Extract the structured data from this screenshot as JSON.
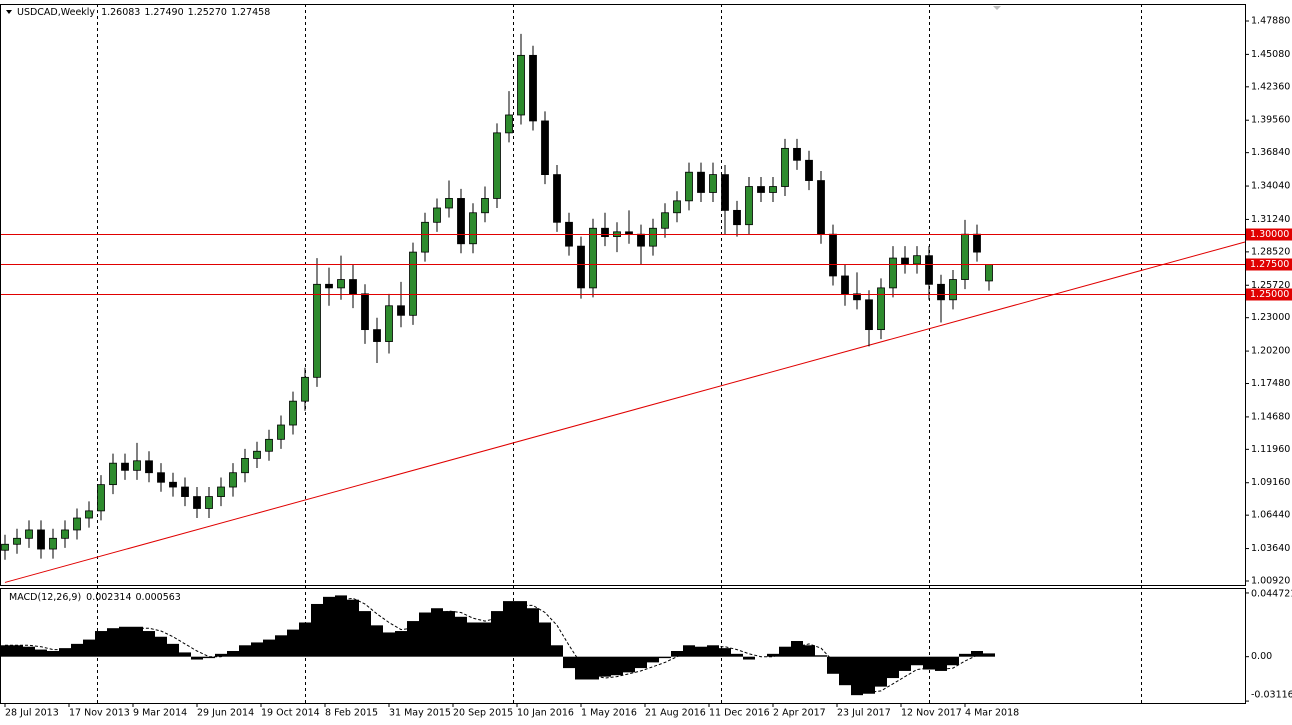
{
  "chart_data": [
    {
      "type": "candlestick",
      "title": "USDCAD,Weekly",
      "ohlc_labels": [
        "1.26083",
        "1.27490",
        "1.25270",
        "1.27458"
      ],
      "x": [
        0,
        3,
        6,
        9,
        12,
        15,
        18,
        21,
        24,
        27,
        30,
        33,
        36,
        39,
        42,
        45,
        48,
        51,
        54,
        57,
        60,
        63,
        66,
        69,
        72,
        75,
        78,
        81,
        84,
        87,
        90,
        93,
        96,
        99,
        102,
        105,
        108,
        111,
        114,
        117,
        120,
        123,
        126,
        129,
        132,
        135,
        138,
        141,
        144,
        147,
        150,
        153,
        156,
        159,
        162,
        165,
        168,
        171,
        174,
        177,
        180,
        183,
        186,
        189,
        192,
        195,
        198,
        201,
        204,
        207,
        210,
        213,
        216,
        219,
        222,
        225,
        228,
        231,
        234,
        237,
        240,
        243,
        246
      ],
      "open": [
        1.035,
        1.04,
        1.045,
        1.052,
        1.036,
        1.045,
        1.052,
        1.062,
        1.068,
        1.09,
        1.108,
        1.102,
        1.11,
        1.1,
        1.092,
        1.088,
        1.08,
        1.07,
        1.08,
        1.088,
        1.1,
        1.112,
        1.118,
        1.128,
        1.14,
        1.16,
        1.18,
        1.258,
        1.255,
        1.262,
        1.25,
        1.22,
        1.21,
        1.24,
        1.232,
        1.285,
        1.31,
        1.322,
        1.33,
        1.292,
        1.318,
        1.33,
        1.385,
        1.4,
        1.45,
        1.395,
        1.35,
        1.31,
        1.29,
        1.255,
        1.305,
        1.298,
        1.302,
        1.3,
        1.29,
        1.305,
        1.318,
        1.328,
        1.352,
        1.335,
        1.35,
        1.32,
        1.308,
        1.34,
        1.335,
        1.34,
        1.372,
        1.362,
        1.345,
        1.3,
        1.265,
        1.25,
        1.245,
        1.22,
        1.255,
        1.28,
        1.275,
        1.282,
        1.258,
        1.245,
        1.262,
        1.3,
        1.26083
      ],
      "high": [
        1.048,
        1.053,
        1.06,
        1.06,
        1.053,
        1.06,
        1.07,
        1.076,
        1.098,
        1.116,
        1.116,
        1.125,
        1.118,
        1.108,
        1.1,
        1.096,
        1.088,
        1.088,
        1.096,
        1.108,
        1.12,
        1.126,
        1.136,
        1.148,
        1.168,
        1.188,
        1.28,
        1.272,
        1.282,
        1.275,
        1.258,
        1.23,
        1.25,
        1.26,
        1.293,
        1.318,
        1.33,
        1.345,
        1.338,
        1.326,
        1.34,
        1.393,
        1.42,
        1.468,
        1.458,
        1.403,
        1.358,
        1.318,
        1.298,
        1.313,
        1.318,
        1.31,
        1.32,
        1.308,
        1.313,
        1.326,
        1.336,
        1.36,
        1.36,
        1.36,
        1.358,
        1.328,
        1.348,
        1.348,
        1.348,
        1.38,
        1.38,
        1.37,
        1.353,
        1.308,
        1.275,
        1.268,
        1.253,
        1.263,
        1.29,
        1.29,
        1.29,
        1.29,
        1.266,
        1.27,
        1.312,
        1.308,
        1.2749
      ],
      "low": [
        1.027,
        1.032,
        1.037,
        1.028,
        1.028,
        1.037,
        1.044,
        1.054,
        1.06,
        1.082,
        1.094,
        1.094,
        1.092,
        1.084,
        1.08,
        1.072,
        1.062,
        1.062,
        1.072,
        1.08,
        1.092,
        1.104,
        1.11,
        1.12,
        1.132,
        1.152,
        1.172,
        1.24,
        1.245,
        1.238,
        1.208,
        1.192,
        1.2,
        1.222,
        1.224,
        1.277,
        1.302,
        1.314,
        1.284,
        1.284,
        1.31,
        1.322,
        1.377,
        1.392,
        1.387,
        1.342,
        1.302,
        1.282,
        1.246,
        1.247,
        1.29,
        1.285,
        1.292,
        1.275,
        1.282,
        1.297,
        1.31,
        1.32,
        1.327,
        1.327,
        1.3,
        1.298,
        1.3,
        1.327,
        1.327,
        1.332,
        1.354,
        1.337,
        1.292,
        1.257,
        1.24,
        1.237,
        1.206,
        1.212,
        1.247,
        1.267,
        1.267,
        1.245,
        1.226,
        1.237,
        1.254,
        1.277,
        1.2527
      ],
      "close": [
        1.04,
        1.045,
        1.052,
        1.036,
        1.045,
        1.052,
        1.062,
        1.068,
        1.09,
        1.108,
        1.102,
        1.11,
        1.1,
        1.092,
        1.088,
        1.08,
        1.07,
        1.08,
        1.088,
        1.1,
        1.112,
        1.118,
        1.128,
        1.14,
        1.16,
        1.18,
        1.258,
        1.255,
        1.262,
        1.25,
        1.22,
        1.21,
        1.24,
        1.232,
        1.285,
        1.31,
        1.322,
        1.33,
        1.292,
        1.318,
        1.33,
        1.385,
        1.4,
        1.45,
        1.395,
        1.35,
        1.31,
        1.29,
        1.255,
        1.305,
        1.298,
        1.302,
        1.3,
        1.29,
        1.305,
        1.318,
        1.328,
        1.352,
        1.335,
        1.35,
        1.32,
        1.308,
        1.34,
        1.335,
        1.34,
        1.372,
        1.362,
        1.345,
        1.3,
        1.265,
        1.25,
        1.245,
        1.22,
        1.255,
        1.28,
        1.275,
        1.282,
        1.258,
        1.245,
        1.262,
        1.3,
        1.285,
        1.27458
      ],
      "up_color": "#2e8b2e",
      "down_color": "#000000",
      "xlim": [
        -1.25,
        310
      ],
      "xticks": [
        {
          "value": 0,
          "label": "28 Jul 2013"
        },
        {
          "value": 16,
          "label": "17 Nov 2013"
        },
        {
          "value": 32,
          "label": "9 Mar 2014"
        },
        {
          "value": 48,
          "label": "29 Jun 2014"
        },
        {
          "value": 64,
          "label": "19 Oct 2014"
        },
        {
          "value": 80,
          "label": "8 Feb 2015"
        },
        {
          "value": 96,
          "label": "31 May 2015"
        },
        {
          "value": 112,
          "label": "20 Sep 2015"
        },
        {
          "value": 128,
          "label": "10 Jan 2016"
        },
        {
          "value": 144,
          "label": "1 May 2016"
        },
        {
          "value": 160,
          "label": "21 Aug 2016"
        },
        {
          "value": 176,
          "label": "11 Dec 2016"
        },
        {
          "value": 192,
          "label": "2 Apr 2017"
        },
        {
          "value": 208,
          "label": "23 Jul 2017"
        },
        {
          "value": 224,
          "label": "12 Nov 2017"
        },
        {
          "value": 240,
          "label": "4 Mar 2018"
        }
      ],
      "xgrid": [
        23,
        75,
        127,
        179,
        231,
        284
      ],
      "ylim": [
        1.00584,
        1.49306
      ],
      "yticks": [
        {
          "value": 1.4788,
          "label": "1.47880"
        },
        {
          "value": 1.4508,
          "label": "1.45080"
        },
        {
          "value": 1.4236,
          "label": "1.42360"
        },
        {
          "value": 1.3956,
          "label": "1.39560"
        },
        {
          "value": 1.3684,
          "label": "1.36840"
        },
        {
          "value": 1.3404,
          "label": "1.34040"
        },
        {
          "value": 1.3124,
          "label": "1.31240"
        },
        {
          "value": 1.2852,
          "label": "1.28520"
        },
        {
          "value": 1.2572,
          "label": "1.25720"
        },
        {
          "value": 1.23,
          "label": "1.23000"
        },
        {
          "value": 1.202,
          "label": "1.20200"
        },
        {
          "value": 1.1748,
          "label": "1.17480"
        },
        {
          "value": 1.1468,
          "label": "1.14680"
        },
        {
          "value": 1.1196,
          "label": "1.11960"
        },
        {
          "value": 1.0916,
          "label": "1.09160"
        },
        {
          "value": 1.0644,
          "label": "1.06440"
        },
        {
          "value": 1.0364,
          "label": "1.03640"
        },
        {
          "value": 1.0092,
          "label": "1.00920"
        }
      ],
      "levels": [
        {
          "value": 1.3,
          "label": "1.30000"
        },
        {
          "value": 1.275,
          "label": "1.27500"
        },
        {
          "value": 1.25,
          "label": "1.25000"
        }
      ],
      "level_color": "#e00000",
      "trendline": {
        "x": [
          0,
          310
        ],
        "y": [
          1.008,
          1.2935
        ]
      }
    },
    {
      "type": "macd",
      "title": "MACD(12,26,9)",
      "histogram": {
        "color": "#000000",
        "values": [
          0.008,
          0.008,
          0.007,
          0.005,
          0.004,
          0.006,
          0.009,
          0.012,
          0.018,
          0.02,
          0.021,
          0.021,
          0.018,
          0.014,
          0.009,
          0.003,
          -0.002,
          -0.001,
          0.002,
          0.004,
          0.008,
          0.01,
          0.012,
          0.015,
          0.019,
          0.024,
          0.037,
          0.042,
          0.043,
          0.04,
          0.032,
          0.022,
          0.017,
          0.018,
          0.025,
          0.031,
          0.034,
          0.032,
          0.028,
          0.024,
          0.024,
          0.032,
          0.039,
          0.039,
          0.034,
          0.024,
          0.008,
          -0.008,
          -0.016,
          -0.016,
          -0.014,
          -0.013,
          -0.011,
          -0.008,
          -0.004,
          -0.001,
          0.004,
          0.008,
          0.007,
          0.008,
          0.006,
          0.002,
          -0.002,
          0.0,
          0.002,
          0.007,
          0.011,
          0.008,
          0.001,
          -0.012,
          -0.02,
          -0.027,
          -0.026,
          -0.021,
          -0.015,
          -0.01,
          -0.006,
          -0.009,
          -0.01,
          -0.006,
          0.002,
          0.004,
          0.002314
        ]
      },
      "signal": {
        "color": "#000000",
        "values": [
          0.008,
          0.008,
          0.008,
          0.007,
          0.005,
          0.005,
          0.006,
          0.009,
          0.012,
          0.016,
          0.019,
          0.02,
          0.02,
          0.018,
          0.014,
          0.009,
          0.004,
          0.0,
          0.0,
          0.002,
          0.004,
          0.007,
          0.01,
          0.012,
          0.015,
          0.019,
          0.026,
          0.034,
          0.04,
          0.041,
          0.037,
          0.03,
          0.024,
          0.019,
          0.02,
          0.025,
          0.03,
          0.032,
          0.031,
          0.027,
          0.025,
          0.027,
          0.032,
          0.036,
          0.036,
          0.031,
          0.022,
          0.008,
          -0.005,
          -0.013,
          -0.015,
          -0.014,
          -0.012,
          -0.01,
          -0.007,
          -0.004,
          0.0,
          0.004,
          0.006,
          0.007,
          0.007,
          0.005,
          0.002,
          0.0,
          0.0,
          0.003,
          0.007,
          0.009,
          0.006,
          -0.003,
          -0.012,
          -0.02,
          -0.025,
          -0.024,
          -0.019,
          -0.014,
          -0.009,
          -0.008,
          -0.009,
          -0.008,
          -0.003,
          0.001,
          0.000563
        ]
      },
      "ylim": [
        -0.0325,
        0.0475
      ],
      "yticks": [
        0.044721,
        {
          "value": 0,
          "label": "0.00"
        },
        -0.031163
      ]
    }
  ]
}
